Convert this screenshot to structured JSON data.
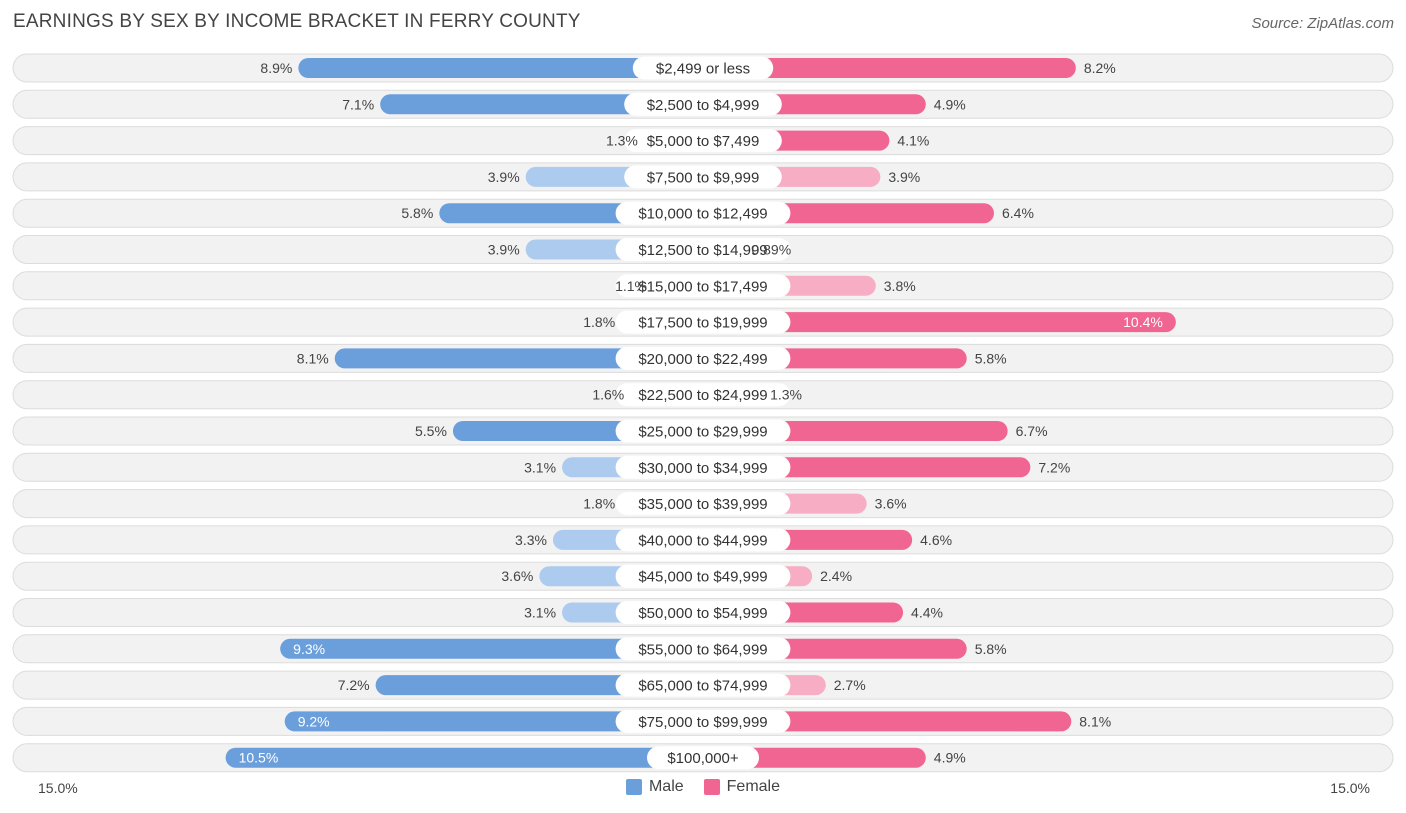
{
  "header": {
    "title": "EARNINGS BY SEX BY INCOME BRACKET IN FERRY COUNTY",
    "source": "Source: ZipAtlas.com"
  },
  "colors": {
    "male_strong": "#6a9fdc",
    "male_light": "#adcbee",
    "female_strong": "#f06591",
    "female_light": "#f7adc4",
    "row_bg": "#f2f2f2",
    "row_border": "#dcdcdc"
  },
  "chart_data": {
    "type": "bar",
    "orientation": "horizontal-diverging",
    "title": "EARNINGS BY SEX BY INCOME BRACKET IN FERRY COUNTY",
    "xlim": [
      -15.0,
      15.0
    ],
    "axis_left_label": "15.0%",
    "axis_right_label": "15.0%",
    "legend_position": "bottom-center",
    "categories": [
      "$2,499 or less",
      "$2,500 to $4,999",
      "$5,000 to $7,499",
      "$7,500 to $9,999",
      "$10,000 to $12,499",
      "$12,500 to $14,999",
      "$15,000 to $17,499",
      "$17,500 to $19,999",
      "$20,000 to $22,499",
      "$22,500 to $24,999",
      "$25,000 to $29,999",
      "$30,000 to $34,999",
      "$35,000 to $39,999",
      "$40,000 to $44,999",
      "$45,000 to $49,999",
      "$50,000 to $54,999",
      "$55,000 to $64,999",
      "$65,000 to $74,999",
      "$75,000 to $99,999",
      "$100,000+"
    ],
    "series": [
      {
        "name": "Male",
        "values": [
          8.9,
          7.1,
          1.3,
          3.9,
          5.8,
          3.9,
          1.1,
          1.8,
          8.1,
          1.6,
          5.5,
          3.1,
          1.8,
          3.3,
          3.6,
          3.1,
          9.3,
          7.2,
          9.2,
          10.5
        ],
        "labels": [
          "8.9%",
          "7.1%",
          "1.3%",
          "3.9%",
          "5.8%",
          "3.9%",
          "1.1%",
          "1.8%",
          "8.1%",
          "1.6%",
          "5.5%",
          "3.1%",
          "1.8%",
          "3.3%",
          "3.6%",
          "3.1%",
          "9.3%",
          "7.2%",
          "9.2%",
          "10.5%"
        ]
      },
      {
        "name": "Female",
        "values": [
          8.2,
          4.9,
          4.1,
          3.9,
          6.4,
          0.89,
          3.8,
          10.4,
          5.8,
          1.3,
          6.7,
          7.2,
          3.6,
          4.6,
          2.4,
          4.4,
          5.8,
          2.7,
          8.1,
          4.9
        ],
        "labels": [
          "8.2%",
          "4.9%",
          "4.1%",
          "3.9%",
          "6.4%",
          "0.89%",
          "3.8%",
          "10.4%",
          "5.8%",
          "1.3%",
          "6.7%",
          "7.2%",
          "3.6%",
          "4.6%",
          "2.4%",
          "4.4%",
          "5.8%",
          "2.7%",
          "8.1%",
          "4.9%"
        ]
      }
    ]
  }
}
